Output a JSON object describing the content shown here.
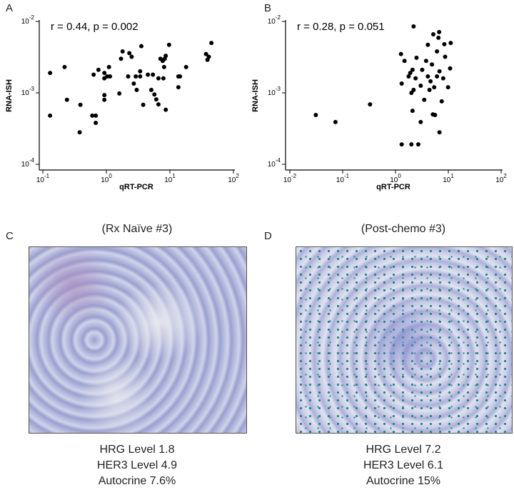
{
  "chart_data": [
    {
      "type": "scatter",
      "label": "A",
      "annotation": "r = 0.44, p = 0.002",
      "xlabel": "qRT-PCR",
      "ylabel": "RNA-ISH",
      "xscale": "log",
      "yscale": "log",
      "color": "#000000",
      "xlim": [
        0.1,
        100
      ],
      "ylim": [
        0.0001,
        0.01
      ],
      "xticks": [
        {
          "value": 0.1,
          "label": "10^-1"
        },
        {
          "value": 1,
          "label": "10^0"
        },
        {
          "value": 10,
          "label": "10^1"
        },
        {
          "value": 100,
          "label": "10^2"
        }
      ],
      "yticks": [
        {
          "value": 0.0001,
          "label": "10^-4"
        },
        {
          "value": 0.001,
          "label": "10^-3"
        },
        {
          "value": 0.01,
          "label": "10^-2"
        }
      ],
      "x": [
        0.13,
        0.13,
        0.22,
        0.24,
        0.39,
        0.38,
        0.6,
        0.68,
        0.68,
        0.63,
        0.75,
        0.93,
        0.93,
        0.93,
        0.93,
        1.03,
        1.1,
        1.14,
        1.6,
        1.7,
        1.8,
        2.3,
        2.5,
        2.2,
        2.7,
        2.9,
        3.0,
        3.4,
        3.4,
        3.55,
        3.8,
        4.5,
        5.1,
        5.4,
        5.7,
        6.1,
        6.6,
        6.6,
        7.1,
        7.7,
        8.1,
        8.3,
        8.6,
        8.6,
        7.9,
        9.7,
        13.6,
        13.6,
        14.4,
        18,
        37,
        39,
        41,
        45
      ],
      "values": [
        0.0019,
        0.00048,
        0.0023,
        0.0008,
        0.00068,
        0.00028,
        0.00048,
        0.00048,
        0.00038,
        0.0018,
        0.0021,
        0.0019,
        0.00093,
        0.0008,
        0.0016,
        0.0017,
        0.0023,
        0.0017,
        0.00098,
        0.003,
        0.0038,
        0.0036,
        0.0032,
        0.0017,
        0.00135,
        0.0017,
        0.0011,
        0.0017,
        0.002,
        0.0045,
        0.00068,
        0.0018,
        0.0011,
        0.0018,
        0.00095,
        0.00081,
        0.0016,
        0.00069,
        0.003,
        0.0028,
        0.0023,
        0.003,
        0.0033,
        0.00058,
        0.0016,
        0.0047,
        0.0017,
        0.0012,
        0.0017,
        0.0023,
        0.0035,
        0.0029,
        0.0032,
        0.005
      ]
    },
    {
      "type": "scatter",
      "label": "B",
      "annotation": "r = 0.28, p = 0.051",
      "xlabel": "qRT-PCR",
      "ylabel": "RNA-ISH",
      "xscale": "log",
      "yscale": "log",
      "color": "#000000",
      "xlim": [
        0.01,
        100
      ],
      "ylim": [
        0.0001,
        0.01
      ],
      "xticks": [
        {
          "value": 0.01,
          "label": "10^-2"
        },
        {
          "value": 0.1,
          "label": "10^-1"
        },
        {
          "value": 1,
          "label": "10^0"
        },
        {
          "value": 10,
          "label": "10^1"
        },
        {
          "value": 100,
          "label": "10^2"
        }
      ],
      "yticks": [
        {
          "value": 0.0001,
          "label": "10^-4"
        },
        {
          "value": 0.001,
          "label": "10^-3"
        },
        {
          "value": 0.01,
          "label": "10^-2"
        }
      ],
      "x": [
        0.031,
        0.073,
        0.33,
        1.27,
        1.31,
        1.31,
        1.48,
        1.77,
        1.9,
        2.0,
        2.1,
        2.2,
        2.0,
        2.1,
        2.2,
        2.4,
        2.5,
        2.7,
        3.0,
        3.0,
        3.2,
        3.5,
        3.8,
        4.1,
        4.1,
        4.4,
        4.6,
        4.9,
        5.1,
        5.2,
        5.4,
        5.6,
        6.1,
        6.1,
        6.5,
        6.7,
        6.8,
        6.8,
        7.5,
        8.0,
        8.4,
        8.7,
        9.9,
        10.8,
        11.1
      ],
      "values": [
        0.00049,
        0.00039,
        0.00069,
        0.0035,
        0.00135,
        0.00019,
        0.0028,
        0.0017,
        0.0019,
        0.001,
        0.0021,
        0.0085,
        0.00019,
        0.00056,
        0.0011,
        0.0016,
        0.0031,
        0.00019,
        0.00039,
        0.00126,
        0.0021,
        0.0008,
        0.0028,
        0.0047,
        0.0017,
        0.0011,
        0.00145,
        0.0025,
        0.0005,
        0.0066,
        0.0012,
        0.00049,
        0.0038,
        0.0017,
        0.0059,
        0.0071,
        0.002,
        0.00028,
        0.00076,
        0.0016,
        0.0048,
        0.0032,
        0.0012,
        0.0022,
        0.005
      ]
    }
  ],
  "images": [
    {
      "label": "C",
      "title": "(Rx Naïve #3)",
      "caption": [
        "HRG Level 1.8",
        "HER3 Level 4.9",
        "Autocrine 7.6%"
      ]
    },
    {
      "label": "D",
      "title": "(Post-chemo #3)",
      "caption": [
        "HRG Level 7.2",
        "HER3 Level 6.1",
        "Autocrine 15%"
      ]
    }
  ]
}
